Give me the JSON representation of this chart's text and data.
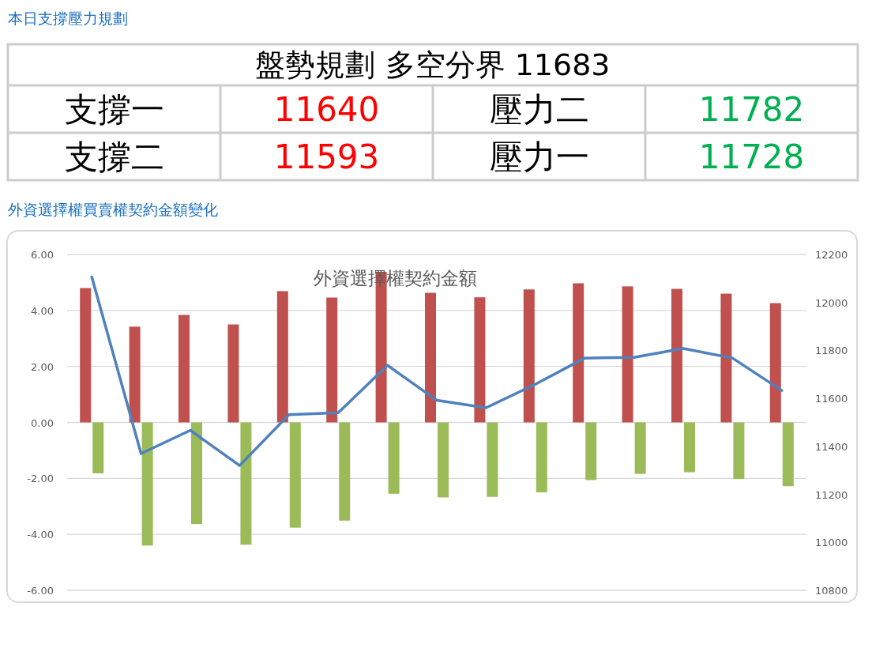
{
  "chart_data": [
    {
      "type": "other",
      "title": "本日支撐壓力規劃",
      "annotations": [
        "盤勢規劃 多空分界 11683",
        "支撐一",
        "11640",
        "壓力二",
        "11782",
        "支撐二",
        "11593",
        "壓力一",
        "11728"
      ]
    },
    {
      "type": "bar",
      "title": "外資選擇權買賣權契約金額變化",
      "subtitle": "外資選擇權契約金額",
      "categories": [
        null,
        null,
        null,
        null,
        null,
        null,
        null,
        null,
        null,
        null,
        null,
        null,
        null,
        null,
        null
      ],
      "series": [
        {
          "color": "#c0504d",
          "values": [
            4.8,
            3.42,
            3.84,
            3.5,
            4.69,
            4.46,
            5.38,
            4.63,
            4.47,
            4.75,
            4.97,
            4.86,
            4.77,
            4.6,
            4.26
          ]
        },
        {
          "color": "#9bbb59",
          "values": [
            -1.82,
            -4.4,
            -3.63,
            -4.37,
            -3.76,
            -3.51,
            -2.55,
            -2.68,
            -2.66,
            -2.5,
            -2.06,
            -1.84,
            -1.78,
            -2.02,
            -2.28
          ]
        },
        {
          "type": "line",
          "axis": "y2",
          "color": "#4f81bd",
          "values": [
            12106,
            11370,
            11467,
            11320,
            11532,
            11540,
            11738,
            11592,
            11561,
            11659,
            11768,
            11771,
            11808,
            11768,
            11633
          ]
        }
      ],
      "ylim": [
        -6,
        6
      ],
      "yticks": [
        {
          "value": -6,
          "label": "-6.00"
        },
        {
          "value": -4,
          "label": "-4.00"
        },
        {
          "value": -2,
          "label": "-2.00"
        },
        {
          "value": 0,
          "label": "0.00"
        },
        {
          "value": 2,
          "label": "2.00"
        },
        {
          "value": 4,
          "label": "4.00"
        },
        {
          "value": 6,
          "label": "6.00"
        }
      ],
      "y2lim": [
        10800,
        12200
      ],
      "y2ticks": [
        10800,
        11000,
        11200,
        11400,
        11600,
        11800,
        12000,
        12200
      ],
      "grid": "y"
    }
  ]
}
